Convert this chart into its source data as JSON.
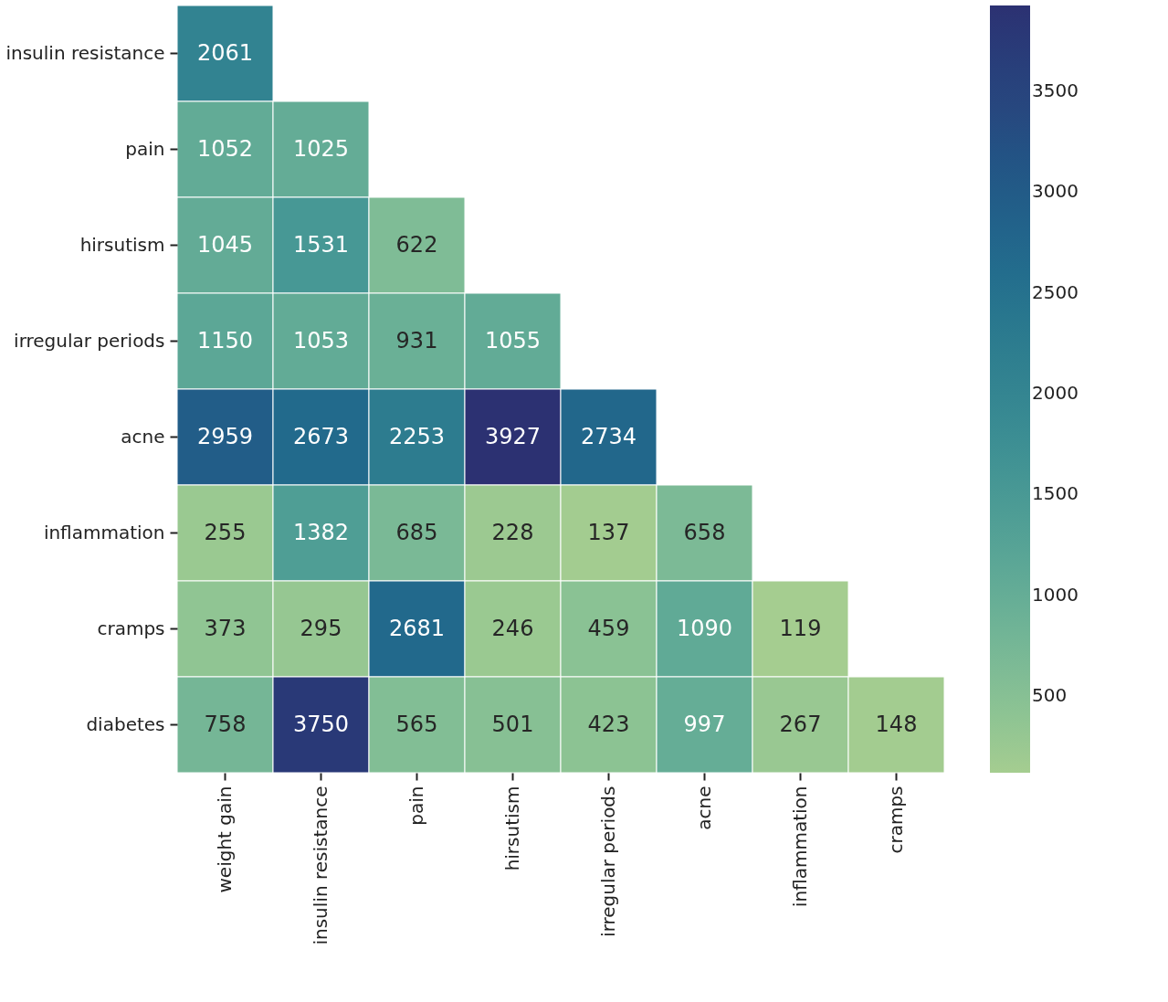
{
  "chart_data": {
    "type": "heatmap",
    "categories": [
      "weight gain",
      "insulin resistance",
      "pain",
      "hirsutism",
      "irregular periods",
      "acne",
      "inflammation",
      "cramps"
    ],
    "y_categories": [
      "insulin resistance",
      "pain",
      "hirsutism",
      "irregular periods",
      "acne",
      "inflammation",
      "cramps",
      "diabetes"
    ],
    "cells": [
      [
        2061,
        null,
        null,
        null,
        null,
        null,
        null,
        null
      ],
      [
        1052,
        1025,
        null,
        null,
        null,
        null,
        null,
        null
      ],
      [
        1045,
        1531,
        622,
        null,
        null,
        null,
        null,
        null
      ],
      [
        1150,
        1053,
        931,
        1055,
        null,
        null,
        null,
        null
      ],
      [
        2959,
        2673,
        2253,
        3927,
        2734,
        null,
        null,
        null
      ],
      [
        255,
        1382,
        685,
        228,
        137,
        658,
        null,
        null
      ],
      [
        373,
        295,
        2681,
        246,
        459,
        1090,
        119,
        null
      ],
      [
        758,
        3750,
        565,
        501,
        423,
        997,
        267,
        148
      ]
    ],
    "data_labels": true,
    "clim": [
      119,
      3927
    ],
    "cticks": [
      500,
      1000,
      1500,
      2000,
      2500,
      3000,
      3500
    ]
  }
}
